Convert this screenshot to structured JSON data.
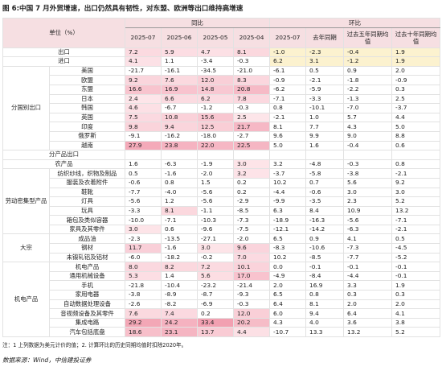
{
  "title": "图 6:中国 7 月外贸增速，出口仍然具有韧性，对东盟、欧洲等出口维持高增速",
  "table": {
    "unit": "单位（%）",
    "groups": [
      "同比",
      "环比"
    ],
    "columns": [
      "2025-07",
      "2025-06",
      "2025-05",
      "2025-04",
      "2025-07",
      "去年同期",
      "过去五年同期均值",
      "过去十年同期均值"
    ],
    "colors": {
      "header": "#f6dfe2",
      "highlight_low": "#fde6ea",
      "highlight_high": "#f2a0b1",
      "mom_top": "#fcf2cf"
    },
    "sections": [
      {
        "rows": [
          {
            "name": "出口",
            "values": [
              "7.2",
              "5.9",
              "4.7",
              "8.1",
              "-1.0",
              "-2.3",
              "-0.4",
              "1.9"
            ]
          },
          {
            "name": "进口",
            "values": [
              "4.1",
              "1.1",
              "-3.4",
              "-0.3",
              "6.2",
              "3.1",
              "-1.2",
              "1.9"
            ]
          }
        ]
      },
      {
        "label": "分国别出口",
        "rows": [
          {
            "name": "美国",
            "values": [
              "-21.7",
              "-16.1",
              "-34.5",
              "-21.0",
              "-6.1",
              "0.5",
              "0.9",
              "2.0"
            ]
          },
          {
            "name": "欧盟",
            "values": [
              "9.2",
              "7.6",
              "12.0",
              "8.3",
              "-0.9",
              "-2.1",
              "-1.8",
              "-0.9"
            ]
          },
          {
            "name": "东盟",
            "values": [
              "16.6",
              "16.9",
              "14.8",
              "20.8",
              "-6.2",
              "-5.9",
              "-2.2",
              "0.3"
            ]
          },
          {
            "name": "日本",
            "values": [
              "2.4",
              "6.6",
              "6.2",
              "7.8",
              "-7.1",
              "-3.3",
              "-1.3",
              "2.5"
            ]
          },
          {
            "name": "韩国",
            "values": [
              "4.6",
              "-6.7",
              "-1.2",
              "-0.3",
              "0.8",
              "-10.1",
              "-7.0",
              "-3.7"
            ]
          },
          {
            "name": "英国",
            "values": [
              "7.5",
              "10.8",
              "15.6",
              "2.5",
              "-2.1",
              "1.0",
              "5.7",
              "4.4"
            ]
          },
          {
            "name": "印度",
            "values": [
              "9.8",
              "9.4",
              "12.5",
              "21.7",
              "8.1",
              "7.7",
              "4.3",
              "5.0"
            ]
          },
          {
            "name": "俄罗斯",
            "values": [
              "-9.1",
              "-16.2",
              "-18.0",
              "-2.7",
              "9.6",
              "9.9",
              "9.0",
              "8.8"
            ]
          },
          {
            "name": "越南",
            "values": [
              "27.9",
              "23.8",
              "22.0",
              "22.5",
              "5.0",
              "1.6",
              "-0.4",
              "0.6"
            ]
          }
        ]
      },
      {
        "rows": [
          {
            "name": "分产品出口"
          },
          {
            "name": "农产品",
            "values": [
              "1.6",
              "-6.3",
              "-1.9",
              "3.0",
              "3.2",
              "-4.8",
              "-0.3",
              "0.8"
            ]
          }
        ]
      },
      {
        "label": "劳动密集型产品",
        "rows": [
          {
            "name": "纺织纱线，织物及制品",
            "values": [
              "0.5",
              "-1.6",
              "-2.0",
              "3.2",
              "-3.7",
              "-5.8",
              "-3.8",
              "-2.1"
            ]
          },
          {
            "name": "服装及衣着附件",
            "values": [
              "-0.6",
              "0.8",
              "1.5",
              "0.2",
              "10.2",
              "0.7",
              "5.6",
              "9.2"
            ]
          },
          {
            "name": "鞋靴",
            "values": [
              "-7.7",
              "-4.0",
              "-5.6",
              "0.2",
              "-4.4",
              "-0.6",
              "3.0",
              "3.0"
            ]
          },
          {
            "name": "灯具",
            "values": [
              "-5.6",
              "1.2",
              "-5.6",
              "-2.9",
              "-9.9",
              "-3.5",
              "2.3",
              "5.2"
            ]
          },
          {
            "name": "玩具",
            "values": [
              "-3.3",
              "8.1",
              "-1.1",
              "-8.5",
              "6.3",
              "8.4",
              "10.9",
              "13.2"
            ]
          },
          {
            "name": "箱包及类似容器",
            "values": [
              "-10.0",
              "-7.1",
              "-10.3",
              "-7.3",
              "-18.9",
              "-16.3",
              "-5.6",
              "-7.1"
            ]
          },
          {
            "name": "家具及其零件",
            "values": [
              "3.0",
              "0.6",
              "-9.6",
              "-7.5",
              "-12.1",
              "-14.2",
              "-6.3",
              "-2.1"
            ]
          }
        ]
      },
      {
        "label": "大宗",
        "rows": [
          {
            "name": "成品油",
            "values": [
              "-2.3",
              "-13.5",
              "-27.1",
              "-2.0",
              "6.5",
              "0.9",
              "4.1",
              "0.5"
            ]
          },
          {
            "name": "钢材",
            "values": [
              "11.7",
              "-1.6",
              "3.0",
              "9.6",
              "-8.3",
              "-10.6",
              "-7.3",
              "-4.5"
            ]
          },
          {
            "name": "未锻轧铝及铝材",
            "values": [
              "-6.0",
              "-18.2",
              "-0.2",
              "7.0",
              "10.2",
              "-8.5",
              "-7.7",
              "-5.2"
            ]
          }
        ]
      },
      {
        "label": "机电产品",
        "rows": [
          {
            "name": "机电产品",
            "values": [
              "8.0",
              "8.2",
              "7.2",
              "10.1",
              "0.0",
              "-0.1",
              "-0.1",
              "-0.1"
            ]
          },
          {
            "name": "通用机械设备",
            "values": [
              "5.3",
              "1.4",
              "5.6",
              "17.0",
              "-4.9",
              "-8.4",
              "-4.4",
              "-0.1"
            ]
          },
          {
            "name": "手机",
            "values": [
              "-21.8",
              "-10.4",
              "-23.2",
              "-21.4",
              "2.0",
              "16.9",
              "3.3",
              "1.9"
            ]
          },
          {
            "name": "家用电器",
            "values": [
              "-3.8",
              "-8.9",
              "-8.7",
              "-9.3",
              "6.5",
              "0.8",
              "0.3",
              "0.3"
            ]
          },
          {
            "name": "自动数据处理设备",
            "values": [
              "-2.6",
              "-8.2",
              "-6.9",
              "-0.3",
              "6.4",
              "8.1",
              "2.0",
              "2.0"
            ]
          },
          {
            "name": "音视频设备及其零件",
            "values": [
              "7.6",
              "7.4",
              "0.2",
              "12.0",
              "6.0",
              "9.4",
              "6.4",
              "4.1"
            ]
          },
          {
            "name": "集成电路",
            "values": [
              "29.2",
              "24.2",
              "33.4",
              "20.2",
              "4.3",
              "4.0",
              "3.6",
              "3.8"
            ]
          },
          {
            "name": "汽车包括底盘",
            "values": [
              "18.6",
              "23.1",
              "13.7",
              "4.4",
              "-10.7",
              "13.3",
              "13.2",
              "5.2"
            ]
          }
        ]
      }
    ]
  },
  "note": "注：1 上列数据为美元计价的值；2. 计算环比的历史同期均值时扣除2020年。",
  "source": "数据来源：Wind，中信建投证券"
}
